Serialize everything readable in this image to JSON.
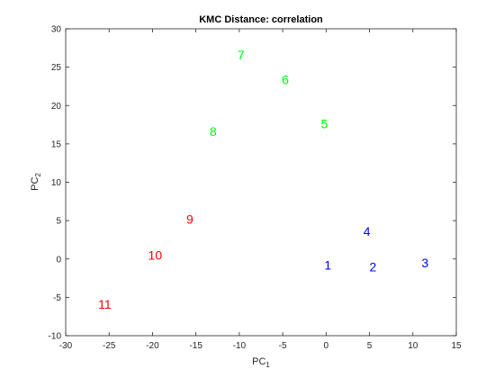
{
  "chart_data": {
    "type": "scatter",
    "title": "KMC Distance: correlation",
    "xlabel": {
      "base": "PC",
      "sub": "1"
    },
    "ylabel": {
      "base": "PC",
      "sub": "2"
    },
    "xlim": [
      -30,
      15
    ],
    "ylim": [
      -10,
      30
    ],
    "xticks": [
      "-30",
      "-25",
      "-20",
      "-15",
      "-10",
      "-5",
      "0",
      "5",
      "10",
      "15"
    ],
    "yticks": [
      "-10",
      "-5",
      "0",
      "5",
      "10",
      "15",
      "20",
      "25",
      "30"
    ],
    "grid": false,
    "points": [
      {
        "label": "1",
        "x": 0.2,
        "y": -0.8,
        "color": "#0000ff"
      },
      {
        "label": "2",
        "x": 5.4,
        "y": -1.0,
        "color": "#0000ff"
      },
      {
        "label": "3",
        "x": 11.4,
        "y": -0.5,
        "color": "#0000ff"
      },
      {
        "label": "4",
        "x": 4.7,
        "y": 3.6,
        "color": "#0000ff"
      },
      {
        "label": "5",
        "x": -0.2,
        "y": 17.6,
        "color": "#00ff00"
      },
      {
        "label": "6",
        "x": -4.7,
        "y": 23.4,
        "color": "#00ff00"
      },
      {
        "label": "7",
        "x": -9.8,
        "y": 26.6,
        "color": "#00ff00"
      },
      {
        "label": "8",
        "x": -13.0,
        "y": 16.6,
        "color": "#00ff00"
      },
      {
        "label": "9",
        "x": -15.7,
        "y": 5.2,
        "color": "#ff0000"
      },
      {
        "label": "10",
        "x": -19.7,
        "y": 0.5,
        "color": "#ff0000"
      },
      {
        "label": "11",
        "x": -25.5,
        "y": -5.9,
        "color": "#ff0000"
      }
    ]
  }
}
